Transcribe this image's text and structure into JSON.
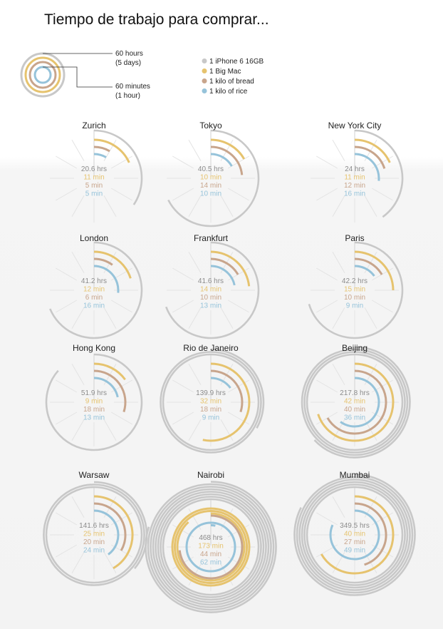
{
  "title": "Tiempo de trabajo para comprar...",
  "colors": {
    "iphone": "#c8c8c8",
    "bigmac": "#e6c36e",
    "bread": "#c8a58c",
    "rice": "#96c3da",
    "spoke": "#e3e3e3",
    "text_iphone": "#8c8c8c"
  },
  "scale_legend": {
    "outer_label_1": "60 hours",
    "outer_label_2": "(5 days)",
    "inner_label_1": "60 minutes",
    "inner_label_2": "(1 hour)"
  },
  "chart_data": {
    "type": "radial-bar",
    "title": "Tiempo de trabajo para comprar...",
    "legend": [
      {
        "key": "iphone",
        "label": "1 iPhone 6 16GB",
        "unit": "hours",
        "full_circle": 60
      },
      {
        "key": "bigmac",
        "label": "1 Big Mac",
        "unit": "minutes",
        "full_circle": 60
      },
      {
        "key": "bread",
        "label": "1 kilo of bread",
        "unit": "minutes",
        "full_circle": 60
      },
      {
        "key": "rice",
        "label": "1 kilo of rice",
        "unit": "minutes",
        "full_circle": 60
      }
    ],
    "cities": [
      {
        "name": "Zurich",
        "iphone": 20.6,
        "bigmac": 11,
        "bread": 5,
        "rice": 5,
        "labels": [
          "20.6 hrs",
          "11 min",
          "5 min",
          "5 min"
        ]
      },
      {
        "name": "Tokyo",
        "iphone": 40.5,
        "bigmac": 10,
        "bread": 14,
        "rice": 10,
        "labels": [
          "40.5 hrs",
          "10 min",
          "14 min",
          "10 min"
        ]
      },
      {
        "name": "New York City",
        "iphone": 24,
        "bigmac": 11,
        "bread": 12,
        "rice": 16,
        "labels": [
          "24 hrs",
          "11 min",
          "12 min",
          "16 min"
        ]
      },
      {
        "name": "London",
        "iphone": 41.2,
        "bigmac": 12,
        "bread": 6,
        "rice": 16,
        "labels": [
          "41.2 hrs",
          "12 min",
          "6 min",
          "16 min"
        ]
      },
      {
        "name": "Frankfurt",
        "iphone": 41.6,
        "bigmac": 14,
        "bread": 10,
        "rice": 13,
        "labels": [
          "41.6 hrs",
          "14 min",
          "10 min",
          "13 min"
        ]
      },
      {
        "name": "Paris",
        "iphone": 42.2,
        "bigmac": 15,
        "bread": 10,
        "rice": 9,
        "labels": [
          "42.2 hrs",
          "15 min",
          "10 min",
          "9 min"
        ]
      },
      {
        "name": "Hong Kong",
        "iphone": 51.9,
        "bigmac": 9,
        "bread": 18,
        "rice": 13,
        "labels": [
          "51.9 hrs",
          "9 min",
          "18 min",
          "13 min"
        ]
      },
      {
        "name": "Rio de Janeiro",
        "iphone": 139.9,
        "bigmac": 32,
        "bread": 18,
        "rice": 9,
        "labels": [
          "139.9 hrs",
          "32 min",
          "18 min",
          "9 min"
        ]
      },
      {
        "name": "Beijing",
        "iphone": 217.8,
        "bigmac": 42,
        "bread": 40,
        "rice": 36,
        "labels": [
          "217.8 hrs",
          "42 min",
          "40 min",
          "36 min"
        ]
      },
      {
        "name": "Warsaw",
        "iphone": 141.6,
        "bigmac": 25,
        "bread": 20,
        "rice": 24,
        "labels": [
          "141.6 hrs",
          "25 min",
          "20 min",
          "24 min"
        ]
      },
      {
        "name": "Nairobi",
        "iphone": 468,
        "bigmac": 173,
        "bread": 44,
        "rice": 62,
        "labels": [
          "468 hrs",
          "173 min",
          "44 min",
          "62 min"
        ]
      },
      {
        "name": "Mumbai",
        "iphone": 349.5,
        "bigmac": 40,
        "bread": 27,
        "rice": 49,
        "labels": [
          "349.5 hrs",
          "40 min",
          "27 min",
          "49 min"
        ]
      }
    ]
  }
}
